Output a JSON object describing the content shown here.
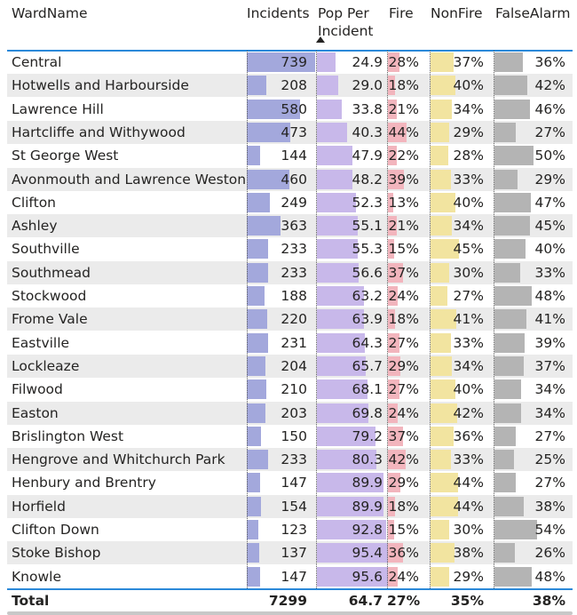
{
  "table": {
    "headers": {
      "ward": "WardName",
      "incidents": "Incidents",
      "pop_line1": "Pop Per",
      "pop_line2": "Incident",
      "fire": "Fire",
      "nonfire": "NonFire",
      "falsealarm": "FalseAlarm"
    },
    "sort_indicator": "sort-ascending-icon",
    "colors": {
      "incidents_bar": "#a3a8dc",
      "pop_bar": "#c8b8ea",
      "fire_bar": "#f2b5bd",
      "nonfire_bar": "#f2e4a0",
      "falsealarm_bar": "#b4b4b4",
      "header_underline": "#2b89d9",
      "alt_row": "#ebebeb"
    },
    "rows": [
      {
        "ward": "Central",
        "incidents": "739",
        "pop": "24.9",
        "fire": "28%",
        "nonfire": "37%",
        "falsealarm": "36%"
      },
      {
        "ward": "Hotwells and Harbourside",
        "incidents": "208",
        "pop": "29.0",
        "fire": "18%",
        "nonfire": "40%",
        "falsealarm": "42%"
      },
      {
        "ward": "Lawrence Hill",
        "incidents": "580",
        "pop": "33.8",
        "fire": "21%",
        "nonfire": "34%",
        "falsealarm": "46%"
      },
      {
        "ward": "Hartcliffe and Withywood",
        "incidents": "473",
        "pop": "40.3",
        "fire": "44%",
        "nonfire": "29%",
        "falsealarm": "27%"
      },
      {
        "ward": "St George West",
        "incidents": "144",
        "pop": "47.9",
        "fire": "22%",
        "nonfire": "28%",
        "falsealarm": "50%"
      },
      {
        "ward": "Avonmouth and Lawrence Weston",
        "incidents": "460",
        "pop": "48.2",
        "fire": "39%",
        "nonfire": "33%",
        "falsealarm": "29%"
      },
      {
        "ward": "Clifton",
        "incidents": "249",
        "pop": "52.3",
        "fire": "13%",
        "nonfire": "40%",
        "falsealarm": "47%"
      },
      {
        "ward": "Ashley",
        "incidents": "363",
        "pop": "55.1",
        "fire": "21%",
        "nonfire": "34%",
        "falsealarm": "45%"
      },
      {
        "ward": "Southville",
        "incidents": "233",
        "pop": "55.3",
        "fire": "15%",
        "nonfire": "45%",
        "falsealarm": "40%"
      },
      {
        "ward": "Southmead",
        "incidents": "233",
        "pop": "56.6",
        "fire": "37%",
        "nonfire": "30%",
        "falsealarm": "33%"
      },
      {
        "ward": "Stockwood",
        "incidents": "188",
        "pop": "63.2",
        "fire": "24%",
        "nonfire": "27%",
        "falsealarm": "48%"
      },
      {
        "ward": "Frome Vale",
        "incidents": "220",
        "pop": "63.9",
        "fire": "18%",
        "nonfire": "41%",
        "falsealarm": "41%"
      },
      {
        "ward": "Eastville",
        "incidents": "231",
        "pop": "64.3",
        "fire": "27%",
        "nonfire": "33%",
        "falsealarm": "39%"
      },
      {
        "ward": "Lockleaze",
        "incidents": "204",
        "pop": "65.7",
        "fire": "29%",
        "nonfire": "34%",
        "falsealarm": "37%"
      },
      {
        "ward": "Filwood",
        "incidents": "210",
        "pop": "68.1",
        "fire": "27%",
        "nonfire": "40%",
        "falsealarm": "34%"
      },
      {
        "ward": "Easton",
        "incidents": "203",
        "pop": "69.8",
        "fire": "24%",
        "nonfire": "42%",
        "falsealarm": "34%"
      },
      {
        "ward": "Brislington West",
        "incidents": "150",
        "pop": "79.2",
        "fire": "37%",
        "nonfire": "36%",
        "falsealarm": "27%"
      },
      {
        "ward": "Hengrove and Whitchurch Park",
        "incidents": "233",
        "pop": "80.3",
        "fire": "42%",
        "nonfire": "33%",
        "falsealarm": "25%"
      },
      {
        "ward": "Henbury and Brentry",
        "incidents": "147",
        "pop": "89.9",
        "fire": "29%",
        "nonfire": "44%",
        "falsealarm": "27%"
      },
      {
        "ward": "Horfield",
        "incidents": "154",
        "pop": "89.9",
        "fire": "18%",
        "nonfire": "44%",
        "falsealarm": "38%"
      },
      {
        "ward": "Clifton Down",
        "incidents": "123",
        "pop": "92.8",
        "fire": "15%",
        "nonfire": "30%",
        "falsealarm": "54%"
      },
      {
        "ward": "Stoke Bishop",
        "incidents": "137",
        "pop": "95.4",
        "fire": "36%",
        "nonfire": "38%",
        "falsealarm": "26%"
      },
      {
        "ward": "Knowle",
        "incidents": "147",
        "pop": "95.6",
        "fire": "24%",
        "nonfire": "29%",
        "falsealarm": "48%"
      }
    ],
    "total": {
      "label": "Total",
      "incidents": "7299",
      "pop": "64.7",
      "fire": "27%",
      "nonfire": "35%",
      "falsealarm": "38%"
    }
  }
}
